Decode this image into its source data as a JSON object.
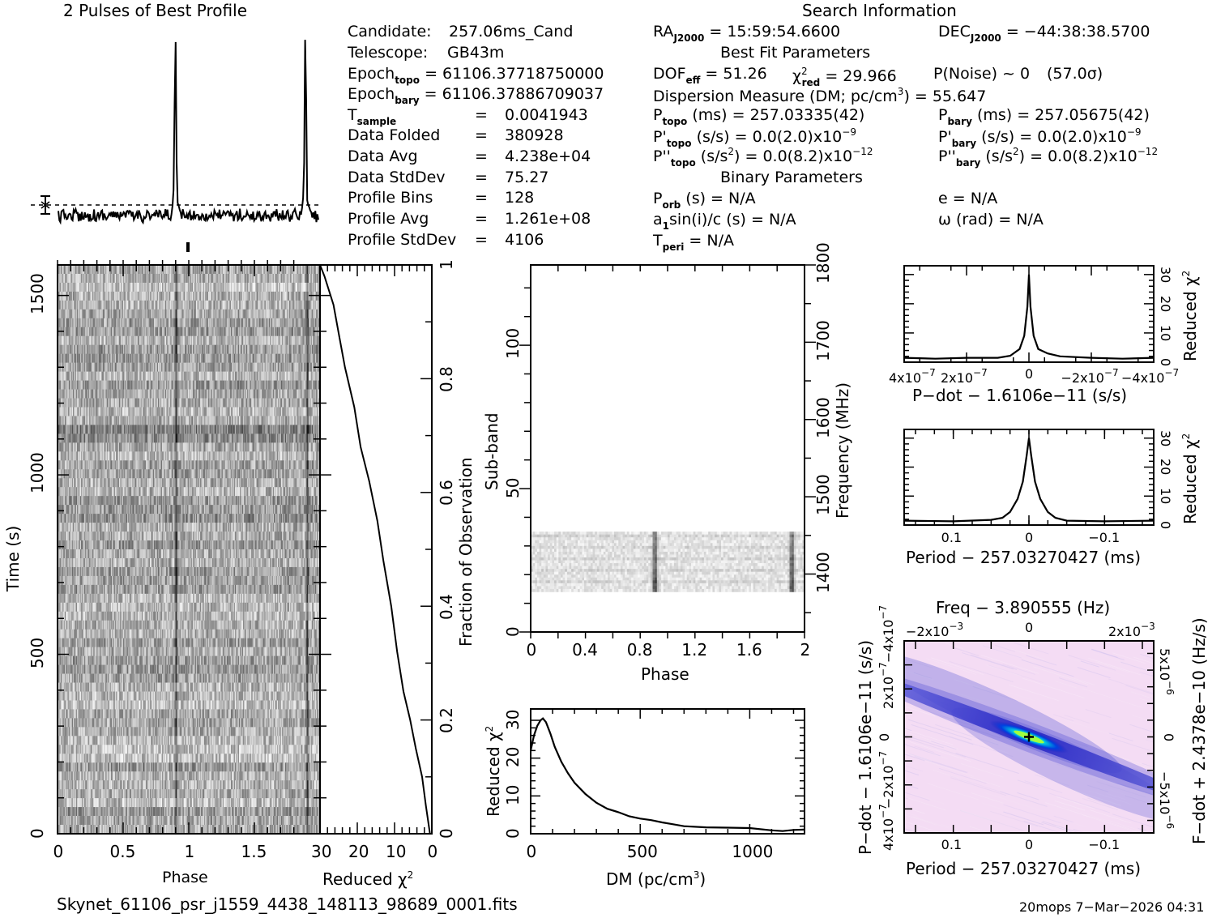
{
  "header": {
    "profile_title": "2 Pulses of Best Profile",
    "search_info_title": "Search Information",
    "best_fit_title": "Best Fit Parameters",
    "binary_title": "Binary Parameters"
  },
  "candidate_info": {
    "candidate_label": "Candidate:",
    "candidate_value": "257.06ms_Cand",
    "telescope_label": "Telescope:",
    "telescope_value": "GB43m",
    "epoch_topo_label": "Epoch",
    "epoch_topo_sub": "topo",
    "epoch_topo_value": "= 61106.37718750000",
    "epoch_bary_label": "Epoch",
    "epoch_bary_sub": "bary",
    "epoch_bary_value": "= 61106.37886709037",
    "t_sample_label": "T",
    "t_sample_sub": "sample",
    "t_sample_value": "0.0041943",
    "rows": [
      {
        "label": "Data Folded",
        "value": "380928"
      },
      {
        "label": "Data Avg",
        "value": "4.238e+04"
      },
      {
        "label": "Data StdDev",
        "value": "75.27"
      },
      {
        "label": "Profile Bins",
        "value": "128"
      },
      {
        "label": "Profile Avg",
        "value": "1.261e+08"
      },
      {
        "label": "Profile StdDev",
        "value": "4106"
      }
    ],
    "equals": "="
  },
  "search_info": {
    "ra_label": "RA",
    "ra_sub": "J2000",
    "ra_value": "= 15:59:54.6600",
    "dec_label": "DEC",
    "dec_sub": "J2000",
    "dec_value": "= −44:38:38.5700",
    "dof_label": "DOF",
    "dof_sub": "eff",
    "dof_value": "= 51.26",
    "chi_label": "χ",
    "chi_sup": "2",
    "chi_sub": "red",
    "chi_value": "= 29.966",
    "pnoise": "P(Noise) ~ 0",
    "sigma": "(57.0σ)",
    "dm_text": "Dispersion Measure (DM; pc/cm",
    "dm_sup": "3",
    "dm_value": ") = 55.647",
    "ptopo_label": "P",
    "ptopo_sub": "topo",
    "ptopo_value": "(ms) =  257.03335(42)",
    "pbary_label": "P",
    "pbary_sub": "bary",
    "pbary_value": "(ms) =  257.05675(42)",
    "pdtopo_label": "P'",
    "pdtopo_sub": "topo",
    "pdtopo_value": "(s/s) = 0.0(2.0)x10",
    "pdtopo_exp": "−9",
    "pdbary_label": "P'",
    "pdbary_sub": "bary",
    "pdbary_value": "(s/s) = 0.0(2.0)x10",
    "pdbary_exp": "−9",
    "pddtopo_label": "P''",
    "pddtopo_sub": "topo",
    "pddtopo_value_a": "(s/s",
    "pddtopo_value_sup": "2",
    "pddtopo_value_b": ") = 0.0(8.2)x10",
    "pddtopo_exp": "−12",
    "pddbary_label": "P''",
    "pddbary_sub": "bary",
    "pddbary_value_a": "(s/s",
    "pddbary_value_sup": "2",
    "pddbary_value_b": ") = 0.0(8.2)x10",
    "pddbary_exp": "−12",
    "porb_label": "P",
    "porb_sub": "orb",
    "porb_value": "(s) = N/A",
    "e_text": "e = N/A",
    "a1_label": "a",
    "a1_sub": "1",
    "a1_value": "sin(i)/c (s) = N/A",
    "omega_text": "ω (rad) = N/A",
    "tperi_label": "T",
    "tperi_sub": "peri",
    "tperi_value": "= N/A"
  },
  "footer": {
    "filename": "Skynet_61106_psr_j1559_4438_148113_98689_0001.fits",
    "user_date": "20mops   7−Mar−2026 04:31"
  },
  "colors": {
    "ink": "#000000",
    "map_bg": "#f4dcf4",
    "map_band": "#3030d0",
    "map_core": "#00e0e0",
    "map_peak": "#80ff40"
  },
  "chart_data": [
    {
      "id": "profile",
      "type": "line",
      "title": "2 Pulses of Best Profile",
      "xlabel": "",
      "ylabel": "",
      "xlim": [
        0,
        2
      ],
      "peak_phases": [
        0.9,
        1.9
      ],
      "baseline": "dashed",
      "errorbar": true
    },
    {
      "id": "time_phase",
      "type": "heatmap",
      "xlabel": "Phase",
      "ylabel": "Time (s)",
      "xlim": [
        0,
        2
      ],
      "ylim": [
        0,
        1585
      ],
      "xticks": [
        "0",
        "0.5",
        "1",
        "1.5"
      ],
      "yticks": [
        "0",
        "500",
        "1000",
        "1500"
      ],
      "colormap": "grey",
      "pulse_phases": [
        0.9,
        1.9
      ]
    },
    {
      "id": "chi_vs_time",
      "type": "line",
      "xlabel": "Reduced χ",
      "xlabel_sup": "2",
      "ylabel": "Fraction of Observation",
      "xlim": [
        30,
        0
      ],
      "ylim": [
        0,
        1
      ],
      "xticks": [
        "30",
        "20",
        "10",
        "0"
      ],
      "yticks": [
        "0",
        "0.2",
        "0.4",
        "0.6",
        "0.8",
        "1"
      ],
      "x": [
        0.5,
        1.6,
        2.6,
        4.3,
        5.8,
        7.6,
        9.3,
        10.9,
        13.0,
        14.6,
        16.8,
        19.1,
        20.8,
        23.3,
        25.0,
        26.4,
        28.8,
        30.0
      ],
      "y": [
        0.0,
        0.05,
        0.1,
        0.15,
        0.2,
        0.25,
        0.32,
        0.4,
        0.48,
        0.55,
        0.62,
        0.68,
        0.75,
        0.82,
        0.88,
        0.93,
        0.98,
        1.0
      ]
    },
    {
      "id": "subband",
      "type": "heatmap",
      "xlabel": "Phase",
      "ylabel": "Sub-band",
      "y2label": "Frequency (MHz)",
      "xlim": [
        0,
        2
      ],
      "ylim": [
        0,
        128
      ],
      "y2lim": [
        1325,
        1800
      ],
      "xticks": [
        "0",
        "0.4",
        "0.8",
        "1.2",
        "1.6",
        "2"
      ],
      "yticks": [
        "0",
        "50",
        "100"
      ],
      "y2ticks": [
        "1400",
        "1500",
        "1600",
        "1700",
        "1800"
      ],
      "data_band": [
        14,
        35
      ],
      "pulse_phases": [
        0.9,
        1.9
      ]
    },
    {
      "id": "dm_curve",
      "type": "line",
      "xlabel": "DM (pc/cm",
      "xlabel_sup": "3",
      "xlabel_end": ")",
      "ylabel": "Reduced χ",
      "ylabel_sup": "2",
      "xlim": [
        0,
        1250
      ],
      "ylim": [
        0,
        33
      ],
      "xticks": [
        "0",
        "500",
        "1000"
      ],
      "yticks": [
        "0",
        "10",
        "20",
        "30"
      ],
      "x": [
        0,
        15,
        30,
        45,
        56,
        70,
        90,
        110,
        140,
        170,
        200,
        250,
        300,
        350,
        400,
        450,
        500,
        550,
        600,
        650,
        700,
        800,
        900,
        1000,
        1100,
        1150,
        1200,
        1250
      ],
      "y": [
        22,
        26,
        28.5,
        30,
        30.5,
        29.5,
        26.5,
        23,
        19,
        16,
        13.5,
        10.5,
        8.2,
        6.6,
        5.7,
        4.6,
        4.0,
        3.6,
        3.0,
        2.5,
        2.0,
        1.7,
        1.6,
        1.5,
        0.9,
        0.7,
        1.0,
        1.1
      ]
    },
    {
      "id": "pdot_curve",
      "type": "line",
      "xlabel": "P−dot − 1.6106e−11 (s/s)",
      "ylabel": "Reduced χ",
      "ylabel_sup": "2",
      "xlim": [
        4e-07,
        -4e-07
      ],
      "ylim": [
        0,
        33
      ],
      "xticks": [
        "4x10",
        "2x10",
        "0",
        "−2x10",
        "−4x10"
      ],
      "xtick_exp": "−7",
      "yticks": [
        "0",
        "10",
        "20",
        "30"
      ],
      "x": [
        4e-07,
        3e-07,
        2e-07,
        1e-07,
        6e-08,
        3e-08,
        1.5e-08,
        5e-09,
        0,
        -5e-09,
        -1.5e-08,
        -3e-08,
        -6e-08,
        -1e-07,
        -2e-07,
        -3e-07,
        -4e-07
      ],
      "y": [
        1.5,
        1.2,
        1.5,
        1.5,
        2.2,
        4.5,
        9,
        19,
        30,
        19,
        9,
        4.5,
        3,
        2,
        1.5,
        1.2,
        1.5
      ]
    },
    {
      "id": "period_curve",
      "type": "line",
      "xlabel": "Period − 257.03270427 (ms)",
      "ylabel": "Reduced χ",
      "ylabel_sup": "2",
      "xlim": [
        0.165,
        -0.165
      ],
      "ylim": [
        0,
        33
      ],
      "xticks": [
        "0.1",
        "0",
        "−0.1"
      ],
      "yticks": [
        "0",
        "10",
        "20",
        "30"
      ],
      "x": [
        0.165,
        0.1,
        0.05,
        0.035,
        0.025,
        0.015,
        0.008,
        0.003,
        0,
        -0.003,
        -0.008,
        -0.015,
        -0.025,
        -0.035,
        -0.05,
        -0.1,
        -0.165
      ],
      "y": [
        1.5,
        1.3,
        1.8,
        2.5,
        4.5,
        9,
        15,
        24,
        30,
        24,
        15,
        9,
        4.5,
        2.5,
        1.5,
        1.3,
        1.5
      ]
    },
    {
      "id": "p_pdot_map",
      "type": "heatmap",
      "title": "Freq − 3.890555 (Hz)",
      "xlabel": "Period − 257.03270427 (ms)",
      "ylabel": "P−dot − 1.6106e−11 (s/s)",
      "y2label": "F−dot + 2.4378e−10 (Hz/s)",
      "xlim": [
        0.165,
        -0.165
      ],
      "ylim": [
        4e-07,
        -4e-07
      ],
      "xticks": [
        "0.1",
        "0",
        "−0.1"
      ],
      "x2ticks": [
        "−2x10",
        "0",
        "2x10"
      ],
      "x2tick_exp": "−3",
      "yticks": [
        "4x10",
        "2x10",
        "0",
        "−2x10",
        "−4x10"
      ],
      "ytick_exp": "−7",
      "y2ticks": [
        "−5x10",
        "0",
        "5x10"
      ],
      "y2tick_exp": "−6",
      "colormap": "pink-blue-cyan-green",
      "best_marker": [
        0,
        0
      ]
    }
  ]
}
